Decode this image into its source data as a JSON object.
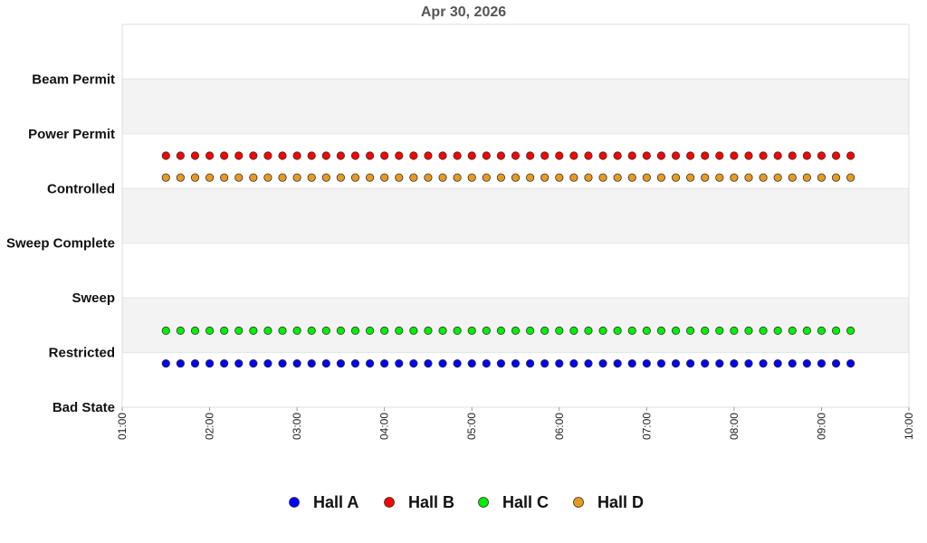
{
  "chart_data": {
    "type": "scatter",
    "title": "Apr 30, 2026",
    "xlabel": "",
    "ylabel": "",
    "x_ticks": [
      "01:00",
      "02:00",
      "03:00",
      "04:00",
      "05:00",
      "06:00",
      "07:00",
      "08:00",
      "09:00",
      "10:00"
    ],
    "xlim": [
      "01:00",
      "10:00"
    ],
    "y_categories": [
      "Bad State",
      "Restricted",
      "Sweep",
      "Sweep Complete",
      "Controlled",
      "Power Permit",
      "Beam Permit"
    ],
    "ylim": [
      0,
      7
    ],
    "grid": "alternating horizontal bands",
    "legend_position": "bottom",
    "sample_start": "01:30",
    "sample_end": "09:20",
    "sample_interval_minutes": 10,
    "series": [
      {
        "name": "Hall A",
        "color": "#0000ff",
        "value": 0.8
      },
      {
        "name": "Hall B",
        "color": "#ff0000",
        "value": 4.6
      },
      {
        "name": "Hall C",
        "color": "#00ee00",
        "value": 1.4
      },
      {
        "name": "Hall D",
        "color": "#e69a20",
        "value": 4.2
      }
    ]
  }
}
